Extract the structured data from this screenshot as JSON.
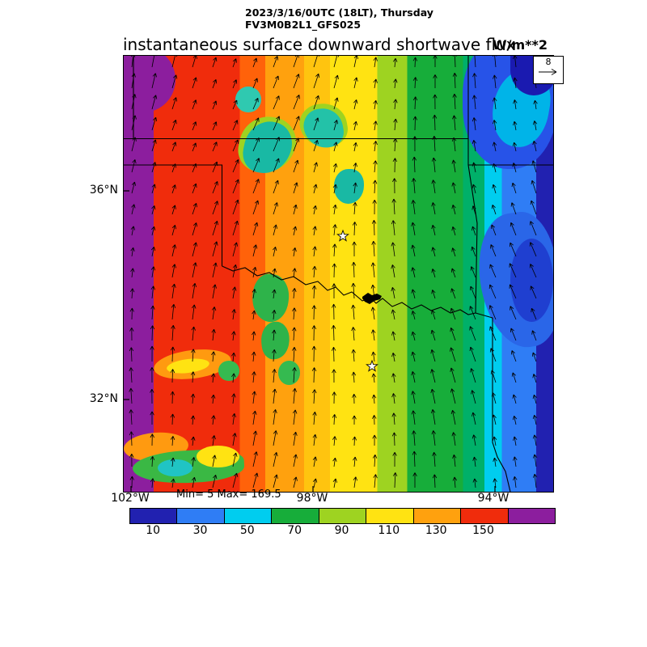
{
  "header": {
    "datetime_line": "2023/3/16/0UTC (18LT), Thursday",
    "model_line": "FV3M0B2L1_GFS025",
    "title": "instantaneous surface downward shortwave flux",
    "units": "W/m**2"
  },
  "map": {
    "minmax": "Min= 5 Max= 169.5",
    "reference_vector_label": "8",
    "lat_labels": [
      {
        "text": "36°N"
      },
      {
        "text": "32°N"
      }
    ],
    "lon_labels": [
      {
        "text": "102°W"
      },
      {
        "text": "98°W"
      },
      {
        "text": "94°W"
      }
    ]
  },
  "chart_data": {
    "type": "heatmap",
    "title": "instantaneous surface downward shortwave flux",
    "units": "W/m**2",
    "valid_time": "2023/3/16/0UTC (18LT), Thursday",
    "model_run": "FV3M0B2L1_GFS025",
    "min_value": 5,
    "max_value": 169.5,
    "colorbar": {
      "tick_labels": [
        10,
        30,
        50,
        70,
        90,
        110,
        130,
        150
      ],
      "colors": [
        "#2121b0",
        "#2f7df5",
        "#00cdef",
        "#17ad3a",
        "#9ed321",
        "#ffe312",
        "#ffa10e",
        "#f02c0c",
        "#8c1e9e"
      ]
    },
    "x_axis": {
      "ticks": [
        "102°W",
        "98°W",
        "94°W"
      ],
      "approx_range_deg_w": [
        102.2,
        92.8
      ]
    },
    "y_axis": {
      "ticks": [
        "36°N",
        "32°N"
      ],
      "approx_range_deg_n": [
        30.2,
        38.6
      ]
    },
    "overlay": {
      "wind_vectors": true,
      "reference_vector": 8,
      "star_markers": 2,
      "region": "South-central US map with state borders (Oklahoma / north Texas)"
    },
    "pattern": "Flux increases westward: ~5-30 W/m**2 (blue) along the east edge, green/yellow bands through the center, >130 (red) in the west and >150 (purple) at the far west edge; scattered teal/green low-flux cloud patches over central Oklahoma and north-central Texas"
  }
}
